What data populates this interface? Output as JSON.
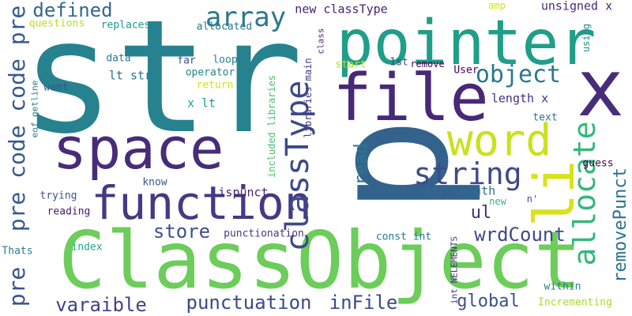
{
  "words": {
    "str": {
      "text": "str",
      "color": "#26828e"
    },
    "p": {
      "text": "p",
      "color": "#33638d"
    },
    "pointer": {
      "text": "pointer",
      "color": "#1f9e89"
    },
    "ClassObject": {
      "text": "ClassObject",
      "color": "#6ccd5a"
    },
    "file": {
      "text": "file",
      "color": "#482878"
    },
    "x": {
      "text": "x",
      "color": "#472d7b"
    },
    "space": {
      "text": "space",
      "color": "#472c7a"
    },
    "function": {
      "text": "function",
      "color": "#443a83"
    },
    "word": {
      "text": "word",
      "color": "#cae11f"
    },
    "li": {
      "text": "li",
      "color": "#d8e219"
    },
    "classType_v": {
      "text": "classType",
      "color": "#3e4989"
    },
    "string": {
      "text": "string",
      "color": "#3e4a89"
    },
    "allocate": {
      "text": "allocate",
      "color": "#35b779"
    },
    "object": {
      "text": "object",
      "color": "#2a788e"
    },
    "array": {
      "text": "array",
      "color": "#2a788e"
    },
    "defined": {
      "text": "defined",
      "color": "#31688e"
    },
    "pre_code_pre": {
      "text": "pre code code pre",
      "color": "#38598c"
    },
    "pre_bottom": {
      "text": "pre",
      "color": "#3b528b"
    },
    "store": {
      "text": "store",
      "color": "#3b528b"
    },
    "punctuation": {
      "text": "punctuation",
      "color": "#3e4989"
    },
    "inFile": {
      "text": "inFile",
      "color": "#3e4989"
    },
    "varaible": {
      "text": "varaible",
      "color": "#414487"
    },
    "wrdCount": {
      "text": "wrdCount",
      "color": "#3e4989"
    },
    "removePunct": {
      "text": "removePunct",
      "color": "#2c728e"
    },
    "global": {
      "text": "global",
      "color": "#3b528b"
    },
    "ul": {
      "text": "ul",
      "color": "#472d7b"
    },
    "read": {
      "text": "read",
      "color": "#2a788e"
    },
    "new_classType": {
      "text": "new classType",
      "color": "#482173"
    },
    "unsigned_x": {
      "text": "unsigned x",
      "color": "#472c7a"
    },
    "lt_str": {
      "text": "lt str",
      "color": "#2c728e"
    },
    "x_lt": {
      "text": "x lt",
      "color": "#1fa088"
    },
    "operator": {
      "text": "operator",
      "color": "#25848e"
    },
    "return": {
      "text": "return",
      "color": "#d0e11c"
    },
    "length_x": {
      "text": "length x",
      "color": "#46307e"
    },
    "str_length": {
      "text": "str length",
      "color": "#2e6e8e"
    },
    "text": {
      "text": "text",
      "color": "#2a788e"
    },
    "guess": {
      "text": "guess",
      "color": "#440154"
    },
    "ispunct": {
      "text": "ispunct",
      "color": "#482576"
    },
    "know": {
      "text": "know",
      "color": "#39568c"
    },
    "trying": {
      "text": "trying",
      "color": "#3b528b"
    },
    "reading": {
      "text": "reading",
      "color": "#481b6d"
    },
    "punctionation": {
      "text": "punctionation",
      "color": "#453882"
    },
    "index": {
      "text": "index",
      "color": "#22a884"
    },
    "Thats": {
      "text": "Thats",
      "color": "#287c8e"
    },
    "const_int": {
      "text": "const int",
      "color": "#2a788e"
    },
    "within": {
      "text": "within",
      "color": "#297b8e"
    },
    "Incrementing": {
      "text": "Incrementing",
      "color": "#a8db34"
    },
    "int_NELEMENTS": {
      "text": "int NELEMENTS",
      "color": "#46337f"
    },
    "new": {
      "text": "new",
      "color": "#38b977"
    },
    "n_quote": {
      "text": "n'",
      "color": "#3b528b"
    },
    "User": {
      "text": "User",
      "color": "#440154"
    },
    "remove": {
      "text": "remove",
      "color": "#440154"
    },
    "first": {
      "text": "1st",
      "color": "#3e4989"
    },
    "start": {
      "text": "start",
      "color": "#b5de2b"
    },
    "amp": {
      "text": "amp",
      "color": "#d2e21b"
    },
    "using": {
      "text": "using",
      "color": "#218e8d"
    },
    "class": {
      "text": "class",
      "color": "#482677"
    },
    "libraries_main": {
      "text": "libraries main",
      "color": "#453882"
    },
    "included_libraries": {
      "text": "included libraries",
      "color": "#4ac16d"
    },
    "allocated": {
      "text": "allocated",
      "color": "#2a788e"
    },
    "replaces": {
      "text": "replaces",
      "color": "#1f968b"
    },
    "questions": {
      "text": "questions",
      "color": "#b8de29"
    },
    "data": {
      "text": "data",
      "color": "#2a788e"
    },
    "far": {
      "text": "far",
      "color": "#3b528b"
    },
    "loop": {
      "text": "loop",
      "color": "#25848e"
    },
    "want": {
      "text": "want",
      "color": "#3b528b"
    },
    "eof_getline": {
      "text": "eof getline",
      "color": "#2a788e"
    }
  }
}
